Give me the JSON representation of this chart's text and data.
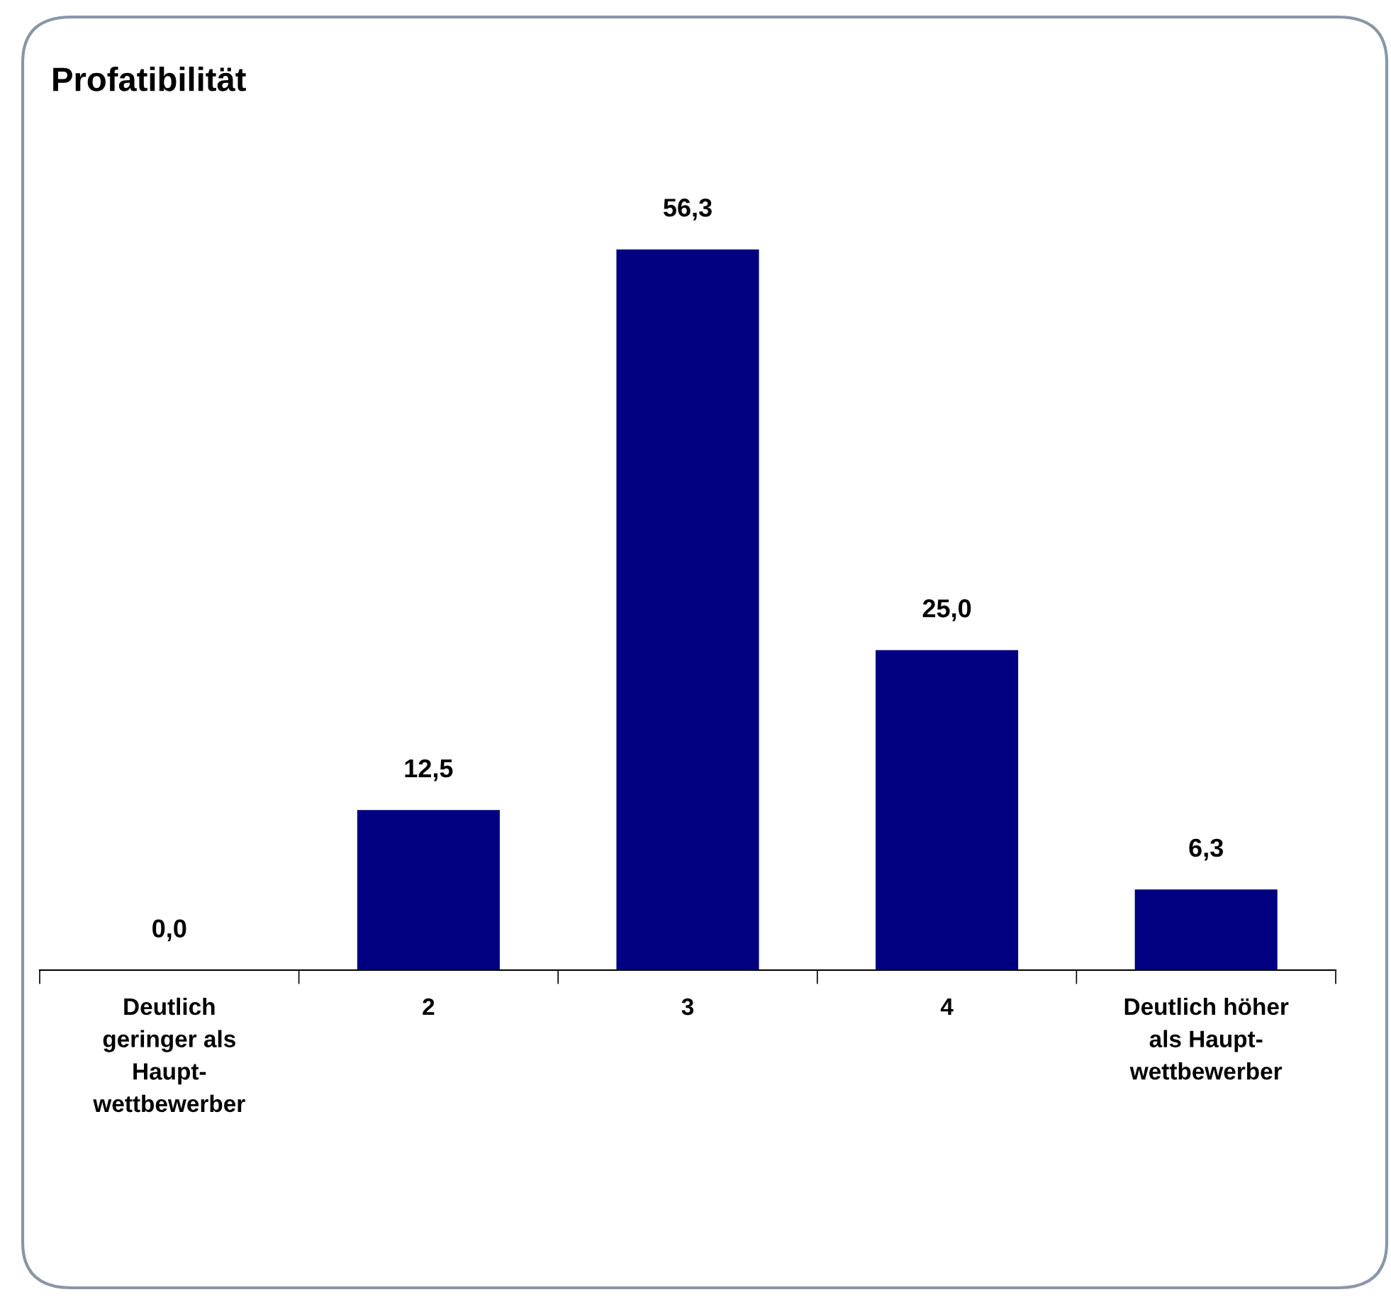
{
  "chart_data": {
    "type": "bar",
    "title": "Profatibilität",
    "categories": [
      "Deutlich\ngeringer als\nHaupt-\nwettbewerber",
      "2",
      "3",
      "4",
      "Deutlich höher\nals Haupt-\nwettbewerber"
    ],
    "values": [
      0.0,
      12.5,
      56.3,
      25.0,
      6.3
    ],
    "value_labels": [
      "0,0",
      "12,5",
      "56,3",
      "25,0",
      "6,3"
    ],
    "color": "#000080",
    "grid": false,
    "legend": false
  }
}
